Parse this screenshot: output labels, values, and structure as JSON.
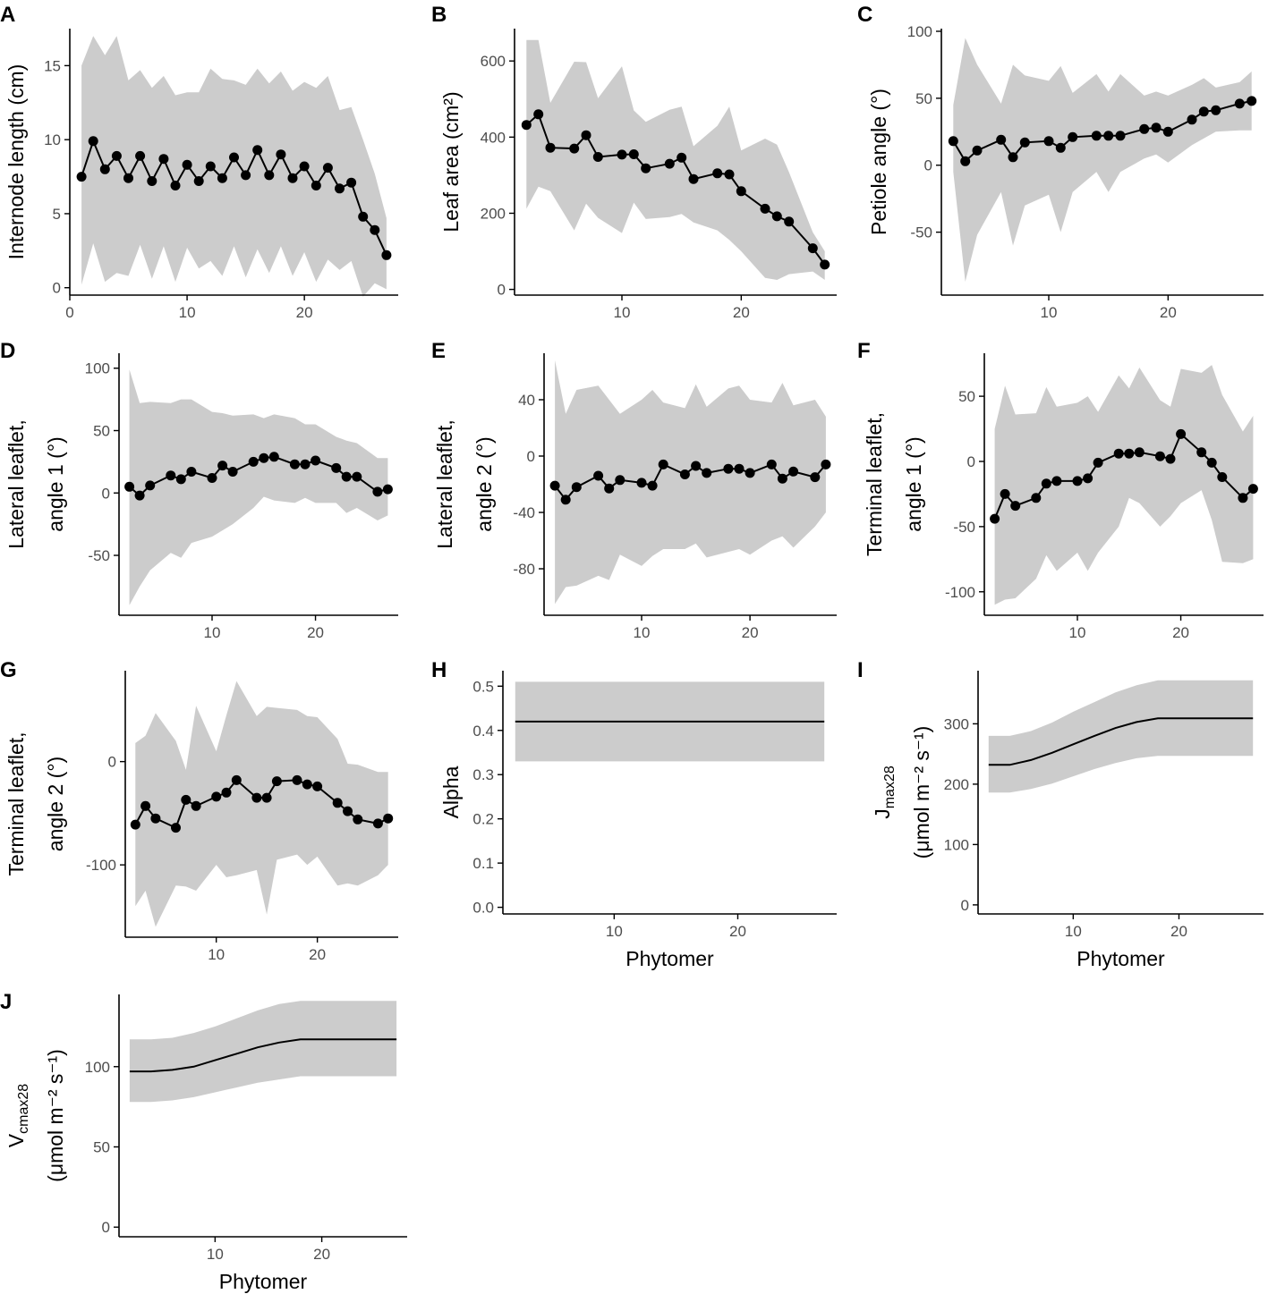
{
  "colors": {
    "ribbon": "#cccccc",
    "line": "#000000",
    "axis": "#000000",
    "tick_label": "#4d4d4d",
    "background": "#ffffff"
  },
  "chart_data": [
    {
      "id": "A",
      "type": "line",
      "panel_label": "A",
      "ylabel_lines": [
        "Internode length (cm)"
      ],
      "xlabel": "",
      "xlim": [
        0,
        28
      ],
      "ylim": [
        -0.5,
        17.5
      ],
      "xticks": [
        0,
        10,
        20
      ],
      "xtick_labels": [
        "0",
        "10",
        "20"
      ],
      "yticks": [
        0,
        5,
        10,
        15
      ],
      "ytick_labels": [
        "0",
        "5",
        "10",
        "15"
      ],
      "points": true,
      "x": [
        1,
        2,
        3,
        4,
        5,
        6,
        7,
        8,
        9,
        10,
        11,
        12,
        13,
        14,
        15,
        16,
        17,
        18,
        19,
        20,
        21,
        22,
        23,
        24,
        25,
        26,
        27
      ],
      "y": [
        7.5,
        9.9,
        8.0,
        8.9,
        7.4,
        8.9,
        7.2,
        8.7,
        6.9,
        8.3,
        7.2,
        8.2,
        7.4,
        8.8,
        7.6,
        9.3,
        7.6,
        9.0,
        7.4,
        8.2,
        6.9,
        8.1,
        6.7,
        7.1,
        4.8,
        3.9,
        2.2
      ],
      "lower": [
        0.2,
        3.0,
        0.4,
        1.0,
        0.8,
        2.9,
        0.6,
        2.8,
        0.4,
        2.7,
        1.3,
        1.8,
        0.8,
        2.8,
        0.7,
        2.6,
        1.0,
        2.8,
        0.8,
        2.4,
        0.4,
        1.9,
        1.2,
        1.8,
        -0.6,
        0.3,
        -0.1
      ],
      "upper": [
        15.0,
        17.0,
        15.7,
        17.0,
        14.0,
        14.7,
        13.5,
        14.3,
        13.0,
        13.2,
        13.2,
        14.8,
        14.1,
        14.0,
        13.7,
        14.8,
        13.8,
        14.6,
        13.3,
        13.9,
        13.5,
        14.3,
        12.0,
        12.2,
        10.0,
        7.7,
        4.7
      ]
    },
    {
      "id": "B",
      "type": "line",
      "panel_label": "B",
      "ylabel_lines": [
        "Leaf area (cm²)"
      ],
      "xlabel": "",
      "xlim": [
        1,
        28
      ],
      "ylim": [
        -15,
        685
      ],
      "xticks": [
        10,
        20
      ],
      "xtick_labels": [
        "10",
        "20"
      ],
      "yticks": [
        0,
        200,
        400,
        600
      ],
      "ytick_labels": [
        "0",
        "200",
        "400",
        "600"
      ],
      "points": true,
      "x": [
        2,
        3,
        4,
        6,
        7,
        8,
        10,
        11,
        12,
        14,
        15,
        16,
        18,
        19,
        20,
        22,
        23,
        24,
        26,
        27
      ],
      "y": [
        432,
        460,
        372,
        370,
        405,
        348,
        354,
        355,
        318,
        330,
        346,
        290,
        305,
        302,
        258,
        212,
        192,
        178,
        108,
        65
      ],
      "lower": [
        212,
        270,
        258,
        155,
        225,
        188,
        148,
        228,
        185,
        190,
        198,
        176,
        155,
        130,
        100,
        30,
        25,
        40,
        47,
        25
      ],
      "upper": [
        655,
        655,
        490,
        598,
        597,
        502,
        586,
        470,
        440,
        472,
        480,
        376,
        430,
        480,
        365,
        396,
        380,
        308,
        150,
        100
      ]
    },
    {
      "id": "C",
      "type": "line",
      "panel_label": "C",
      "ylabel_lines": [
        "Petiole angle (°)"
      ],
      "xlabel": "",
      "xlim": [
        1,
        28
      ],
      "ylim": [
        -97,
        102
      ],
      "xticks": [
        10,
        20
      ],
      "xtick_labels": [
        "10",
        "20"
      ],
      "yticks": [
        -50,
        0,
        50,
        100
      ],
      "ytick_labels": [
        "-50",
        "0",
        "50",
        "100"
      ],
      "points": true,
      "x": [
        2,
        3,
        4,
        6,
        7,
        8,
        10,
        11,
        12,
        14,
        15,
        16,
        18,
        19,
        20,
        22,
        23,
        24,
        26,
        27
      ],
      "y": [
        18,
        3,
        11,
        19,
        6,
        17,
        18,
        13,
        21,
        22,
        22,
        22,
        27,
        28,
        25,
        34,
        40,
        41,
        46,
        48
      ],
      "lower": [
        -5,
        -87,
        -52,
        -20,
        -60,
        -30,
        -22,
        -50,
        -20,
        -5,
        -20,
        -5,
        5,
        8,
        2,
        15,
        20,
        25,
        26,
        26
      ],
      "upper": [
        45,
        95,
        75,
        46,
        75,
        67,
        63,
        74,
        54,
        68,
        55,
        68,
        52,
        55,
        52,
        60,
        65,
        58,
        62,
        70
      ]
    },
    {
      "id": "D",
      "type": "line",
      "panel_label": "D",
      "ylabel_lines": [
        "Lateral leaflet,",
        "angle 1 (°)"
      ],
      "xlabel": "",
      "xlim": [
        1,
        28
      ],
      "ylim": [
        -98,
        112
      ],
      "xticks": [
        10,
        20
      ],
      "xtick_labels": [
        "10",
        "20"
      ],
      "yticks": [
        -50,
        0,
        50,
        100
      ],
      "ytick_labels": [
        "-50",
        "0",
        "50",
        "100"
      ],
      "points": true,
      "x": [
        2,
        3,
        4,
        6,
        7,
        8,
        10,
        11,
        12,
        14,
        15,
        16,
        18,
        19,
        20,
        22,
        23,
        24,
        26,
        27
      ],
      "y": [
        5,
        -2,
        6,
        14,
        11,
        17,
        12,
        22,
        17,
        25,
        28,
        29,
        23,
        23,
        26,
        20,
        13,
        13,
        1,
        3
      ],
      "lower": [
        -90,
        -75,
        -62,
        -48,
        -52,
        -40,
        -35,
        -30,
        -25,
        -12,
        -3,
        -6,
        -8,
        -4,
        -8,
        -8,
        -16,
        -12,
        -22,
        -18
      ],
      "upper": [
        99,
        72,
        73,
        72,
        75,
        75,
        65,
        64,
        62,
        63,
        60,
        63,
        60,
        55,
        55,
        45,
        42,
        40,
        28,
        28
      ]
    },
    {
      "id": "E",
      "type": "line",
      "panel_label": "E",
      "ylabel_lines": [
        "Lateral leaflet,",
        "angle 2 (°)"
      ],
      "xlabel": "",
      "xlim": [
        1,
        28
      ],
      "ylim": [
        -113,
        73
      ],
      "xticks": [
        10,
        20
      ],
      "xtick_labels": [
        "10",
        "20"
      ],
      "yticks": [
        -80,
        -40,
        0,
        40
      ],
      "ytick_labels": [
        "-80",
        "-40",
        "0",
        "40"
      ],
      "points": true,
      "x": [
        2,
        3,
        4,
        6,
        7,
        8,
        10,
        11,
        12,
        14,
        15,
        16,
        18,
        19,
        20,
        22,
        23,
        24,
        26,
        27
      ],
      "y": [
        -21,
        -31,
        -22,
        -14,
        -23,
        -17,
        -19,
        -21,
        -6,
        -13,
        -7,
        -12,
        -9,
        -9,
        -12,
        -6,
        -16,
        -11,
        -15,
        -6
      ],
      "lower": [
        -105,
        -93,
        -92,
        -85,
        -88,
        -70,
        -78,
        -71,
        -66,
        -66,
        -62,
        -72,
        -68,
        -66,
        -70,
        -60,
        -57,
        -65,
        -50,
        -40
      ],
      "upper": [
        68,
        30,
        47,
        50,
        40,
        30,
        40,
        47,
        38,
        34,
        51,
        35,
        48,
        50,
        40,
        38,
        52,
        36,
        40,
        28
      ]
    },
    {
      "id": "F",
      "type": "line",
      "panel_label": "F",
      "ylabel_lines": [
        "Terminal leaflet,",
        "angle 1 (°)"
      ],
      "xlabel": "",
      "xlim": [
        1,
        28
      ],
      "ylim": [
        -118,
        83
      ],
      "xticks": [
        10,
        20
      ],
      "xtick_labels": [
        "10",
        "20"
      ],
      "yticks": [
        -100,
        -50,
        0,
        50
      ],
      "ytick_labels": [
        "-100",
        "-50",
        "0",
        "50"
      ],
      "points": true,
      "x": [
        2,
        3,
        4,
        6,
        7,
        8,
        10,
        11,
        12,
        14,
        15,
        16,
        18,
        19,
        20,
        22,
        23,
        24,
        26,
        27
      ],
      "y": [
        -44,
        -25,
        -34,
        -28,
        -17,
        -15,
        -15,
        -13,
        -1,
        6,
        6,
        7,
        4,
        2,
        21,
        7,
        -1,
        -12,
        -28,
        -21
      ],
      "lower": [
        -110,
        -106,
        -105,
        -90,
        -72,
        -84,
        -70,
        -84,
        -70,
        -50,
        -28,
        -32,
        -50,
        -42,
        -32,
        -22,
        -45,
        -77,
        -78,
        -75
      ],
      "upper": [
        25,
        58,
        36,
        37,
        57,
        42,
        45,
        50,
        38,
        66,
        56,
        72,
        47,
        42,
        71,
        68,
        74,
        51,
        23,
        35
      ]
    },
    {
      "id": "G",
      "type": "line",
      "panel_label": "G",
      "ylabel_lines": [
        "Terminal leaflet,",
        "angle 2 (°)"
      ],
      "xlabel": "",
      "xlim": [
        1,
        28
      ],
      "ylim": [
        -170,
        88
      ],
      "xticks": [
        10,
        20
      ],
      "xtick_labels": [
        "10",
        "20"
      ],
      "yticks": [
        -100,
        0
      ],
      "ytick_labels": [
        "-100",
        "0"
      ],
      "points": true,
      "x": [
        2,
        3,
        4,
        6,
        7,
        8,
        10,
        11,
        12,
        14,
        15,
        16,
        18,
        19,
        20,
        22,
        23,
        24,
        26,
        27
      ],
      "y": [
        -61,
        -43,
        -55,
        -64,
        -37,
        -43,
        -34,
        -30,
        -18,
        -35,
        -35,
        -19,
        -18,
        -22,
        -24,
        -40,
        -48,
        -56,
        -60,
        -55
      ],
      "lower": [
        -140,
        -125,
        -160,
        -120,
        -121,
        -125,
        -100,
        -112,
        -110,
        -105,
        -148,
        -95,
        -90,
        -100,
        -92,
        -120,
        -118,
        -120,
        -110,
        -100
      ],
      "upper": [
        18,
        25,
        47,
        20,
        -8,
        54,
        10,
        45,
        78,
        44,
        53,
        52,
        50,
        44,
        43,
        22,
        -2,
        -3,
        -10,
        -10
      ]
    },
    {
      "id": "H",
      "type": "area",
      "panel_label": "H",
      "ylabel_lines": [
        "Alpha"
      ],
      "xlabel": "Phytomer",
      "xlim": [
        1,
        28
      ],
      "ylim": [
        -0.015,
        0.535
      ],
      "xticks": [
        10,
        20
      ],
      "xtick_labels": [
        "10",
        "20"
      ],
      "yticks": [
        0.0,
        0.1,
        0.2,
        0.3,
        0.4,
        0.5
      ],
      "ytick_labels": [
        "0.0",
        "0.1",
        "0.2",
        "0.3",
        "0.4",
        "0.5"
      ],
      "points": false,
      "x": [
        2,
        27
      ],
      "y": [
        0.42,
        0.42
      ],
      "lower": [
        0.33,
        0.33
      ],
      "upper": [
        0.51,
        0.51
      ]
    },
    {
      "id": "I",
      "type": "area",
      "panel_label": "I",
      "ylabel_lines": [
        "J_max28",
        "(μmol  m⁻² s⁻¹)"
      ],
      "xlabel": "Phytomer",
      "xlim": [
        1,
        28
      ],
      "ylim": [
        -15,
        388
      ],
      "xticks": [
        10,
        20
      ],
      "xtick_labels": [
        "10",
        "20"
      ],
      "yticks": [
        0,
        100,
        200,
        300
      ],
      "ytick_labels": [
        "0",
        "100",
        "200",
        "300"
      ],
      "points": false,
      "x": [
        2,
        4,
        6,
        8,
        10,
        12,
        14,
        16,
        18,
        20,
        22,
        24,
        27
      ],
      "y": [
        232,
        232,
        240,
        252,
        266,
        280,
        293,
        303,
        309,
        309,
        309,
        309,
        309
      ],
      "lower": [
        186,
        186,
        192,
        201,
        213,
        225,
        235,
        243,
        247,
        247,
        247,
        247,
        247
      ],
      "upper": [
        280,
        280,
        288,
        302,
        320,
        336,
        352,
        364,
        372,
        372,
        372,
        372,
        372
      ]
    },
    {
      "id": "J",
      "type": "area",
      "panel_label": "J",
      "ylabel_lines": [
        "V_cmax28",
        "(μmol  m⁻² s⁻¹)"
      ],
      "xlabel": "Phytomer",
      "xlim": [
        1,
        28
      ],
      "ylim": [
        -6,
        145
      ],
      "xticks": [
        10,
        20
      ],
      "xtick_labels": [
        "10",
        "20"
      ],
      "yticks": [
        0,
        50,
        100
      ],
      "ytick_labels": [
        "0",
        "50",
        "100"
      ],
      "points": false,
      "x": [
        2,
        4,
        6,
        8,
        10,
        12,
        14,
        16,
        18,
        20,
        22,
        24,
        27
      ],
      "y": [
        97,
        97,
        98,
        100,
        104,
        108,
        112,
        115,
        117,
        117,
        117,
        117,
        117
      ],
      "lower": [
        78,
        78,
        79,
        81,
        84,
        87,
        90,
        92,
        94,
        94,
        94,
        94,
        94
      ],
      "upper": [
        117,
        117,
        118,
        121,
        125,
        130,
        135,
        139,
        141,
        141,
        141,
        141,
        141
      ]
    }
  ]
}
